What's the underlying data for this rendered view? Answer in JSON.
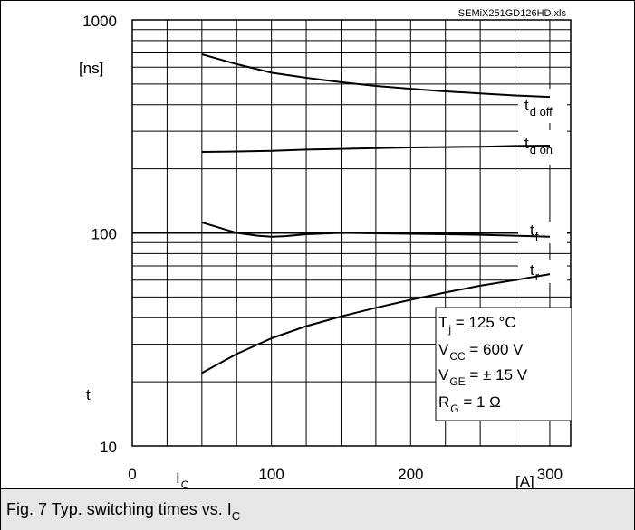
{
  "chart_data": {
    "type": "line",
    "source_label": "SEMiX251GD126HD.xls",
    "ylabel": "t",
    "yunit": "[ns]",
    "xlabel": "I",
    "xlabel_sub": "C",
    "xunit": "[A]",
    "yscale": "log",
    "xlim": [
      0,
      300
    ],
    "ylim": [
      10,
      1000
    ],
    "grid": true,
    "x_ticks": [
      "0",
      "100",
      "200",
      "300"
    ],
    "y_ticks": [
      "10",
      "100",
      "1000"
    ],
    "series": [
      {
        "name": "t",
        "sub": "d off",
        "x": [
          50,
          75,
          100,
          125,
          150,
          175,
          200,
          225,
          250,
          275,
          300
        ],
        "y": [
          690,
          620,
          565,
          535,
          510,
          490,
          475,
          462,
          452,
          442,
          435
        ]
      },
      {
        "name": "t",
        "sub": "d on",
        "x": [
          50,
          75,
          100,
          125,
          150,
          175,
          200,
          225,
          250,
          275,
          300
        ],
        "y": [
          240,
          241,
          243,
          246,
          248,
          250,
          252,
          253,
          254,
          256,
          257
        ]
      },
      {
        "name": "t",
        "sub": "f",
        "x": [
          50,
          60,
          75,
          90,
          100,
          110,
          125,
          150,
          175,
          200,
          225,
          250,
          275,
          300
        ],
        "y": [
          112,
          107,
          100,
          97,
          96,
          96.5,
          98.5,
          100,
          99.5,
          99,
          98.5,
          98,
          97,
          96
        ]
      },
      {
        "name": "t",
        "sub": "r",
        "x": [
          50,
          75,
          100,
          125,
          150,
          175,
          200,
          225,
          250,
          275,
          300
        ],
        "y": [
          22,
          27,
          32,
          36.5,
          40.5,
          44.5,
          48.5,
          52.5,
          56.5,
          60,
          64
        ]
      }
    ],
    "annotations": [
      {
        "main": "T",
        "sub": "j",
        "rest": " = 125 °C"
      },
      {
        "main": "V",
        "sub": "CC",
        "rest": " = 600 V"
      },
      {
        "main": "V",
        "sub": "GE",
        "rest": " = ± 15 V"
      },
      {
        "main": "R",
        "sub": "G",
        "rest": " = 1 Ω"
      }
    ]
  },
  "caption": {
    "text": "Fig. 7 Typ. switching times vs. I",
    "sub": "C"
  }
}
